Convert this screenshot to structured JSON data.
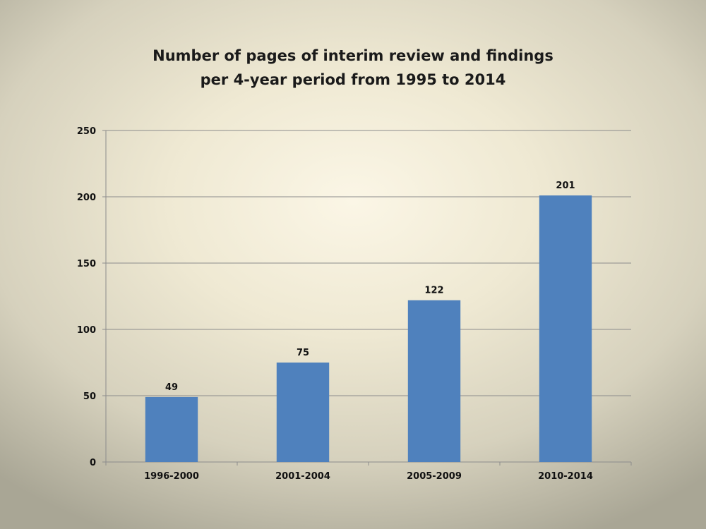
{
  "chart_data": {
    "type": "bar",
    "title_lines": [
      "Number of pages of interim review and findings",
      "per 4-year period from 1995 to 2014"
    ],
    "categories": [
      "1996-2000",
      "2001-2004",
      "2005-2009",
      "2010-2014"
    ],
    "values": [
      49,
      75,
      122,
      201
    ],
    "data_labels": [
      "49",
      "75",
      "122",
      "201"
    ],
    "ylim": [
      0,
      250
    ],
    "yticks": [
      0,
      50,
      100,
      150,
      200,
      250
    ],
    "xlabel": "",
    "ylabel": "",
    "grid": true,
    "legend": "none",
    "bar_color": "#4f81bd",
    "grid_color": "#8c8c8c"
  }
}
